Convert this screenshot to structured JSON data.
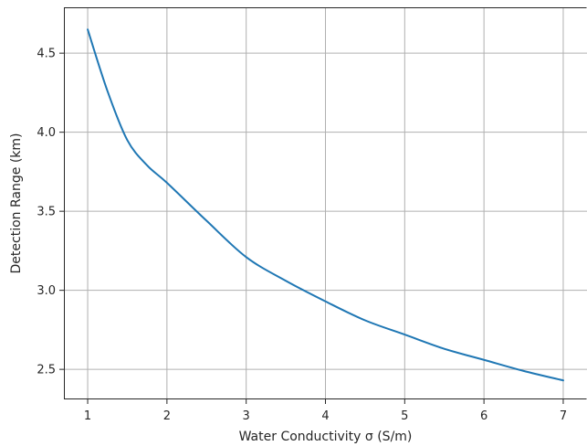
{
  "chart_data": {
    "type": "line",
    "title": "",
    "xlabel": "Water Conductivity σ (S/m)",
    "ylabel": "Detection Range (km)",
    "xlim": [
      0.7,
      7.3
    ],
    "ylim": [
      2.31,
      4.79
    ],
    "xticks": [
      1,
      2,
      3,
      4,
      5,
      6,
      7
    ],
    "yticks": [
      2.5,
      3.0,
      3.5,
      4.0,
      4.5
    ],
    "xtick_labels": [
      "1",
      "2",
      "3",
      "4",
      "5",
      "6",
      "7"
    ],
    "ytick_labels": [
      "2.5",
      "3.0",
      "3.5",
      "4.0",
      "4.5"
    ],
    "grid": true,
    "series": [
      {
        "color": "#1f77b4",
        "x": [
          1,
          1.25,
          1.5,
          1.75,
          2,
          2.5,
          3,
          3.5,
          4,
          4.5,
          5,
          5.5,
          6,
          6.5,
          7
        ],
        "y": [
          4.65,
          4.26,
          3.95,
          3.79,
          3.68,
          3.44,
          3.21,
          3.06,
          2.93,
          2.81,
          2.72,
          2.63,
          2.56,
          2.49,
          2.43
        ]
      }
    ]
  }
}
